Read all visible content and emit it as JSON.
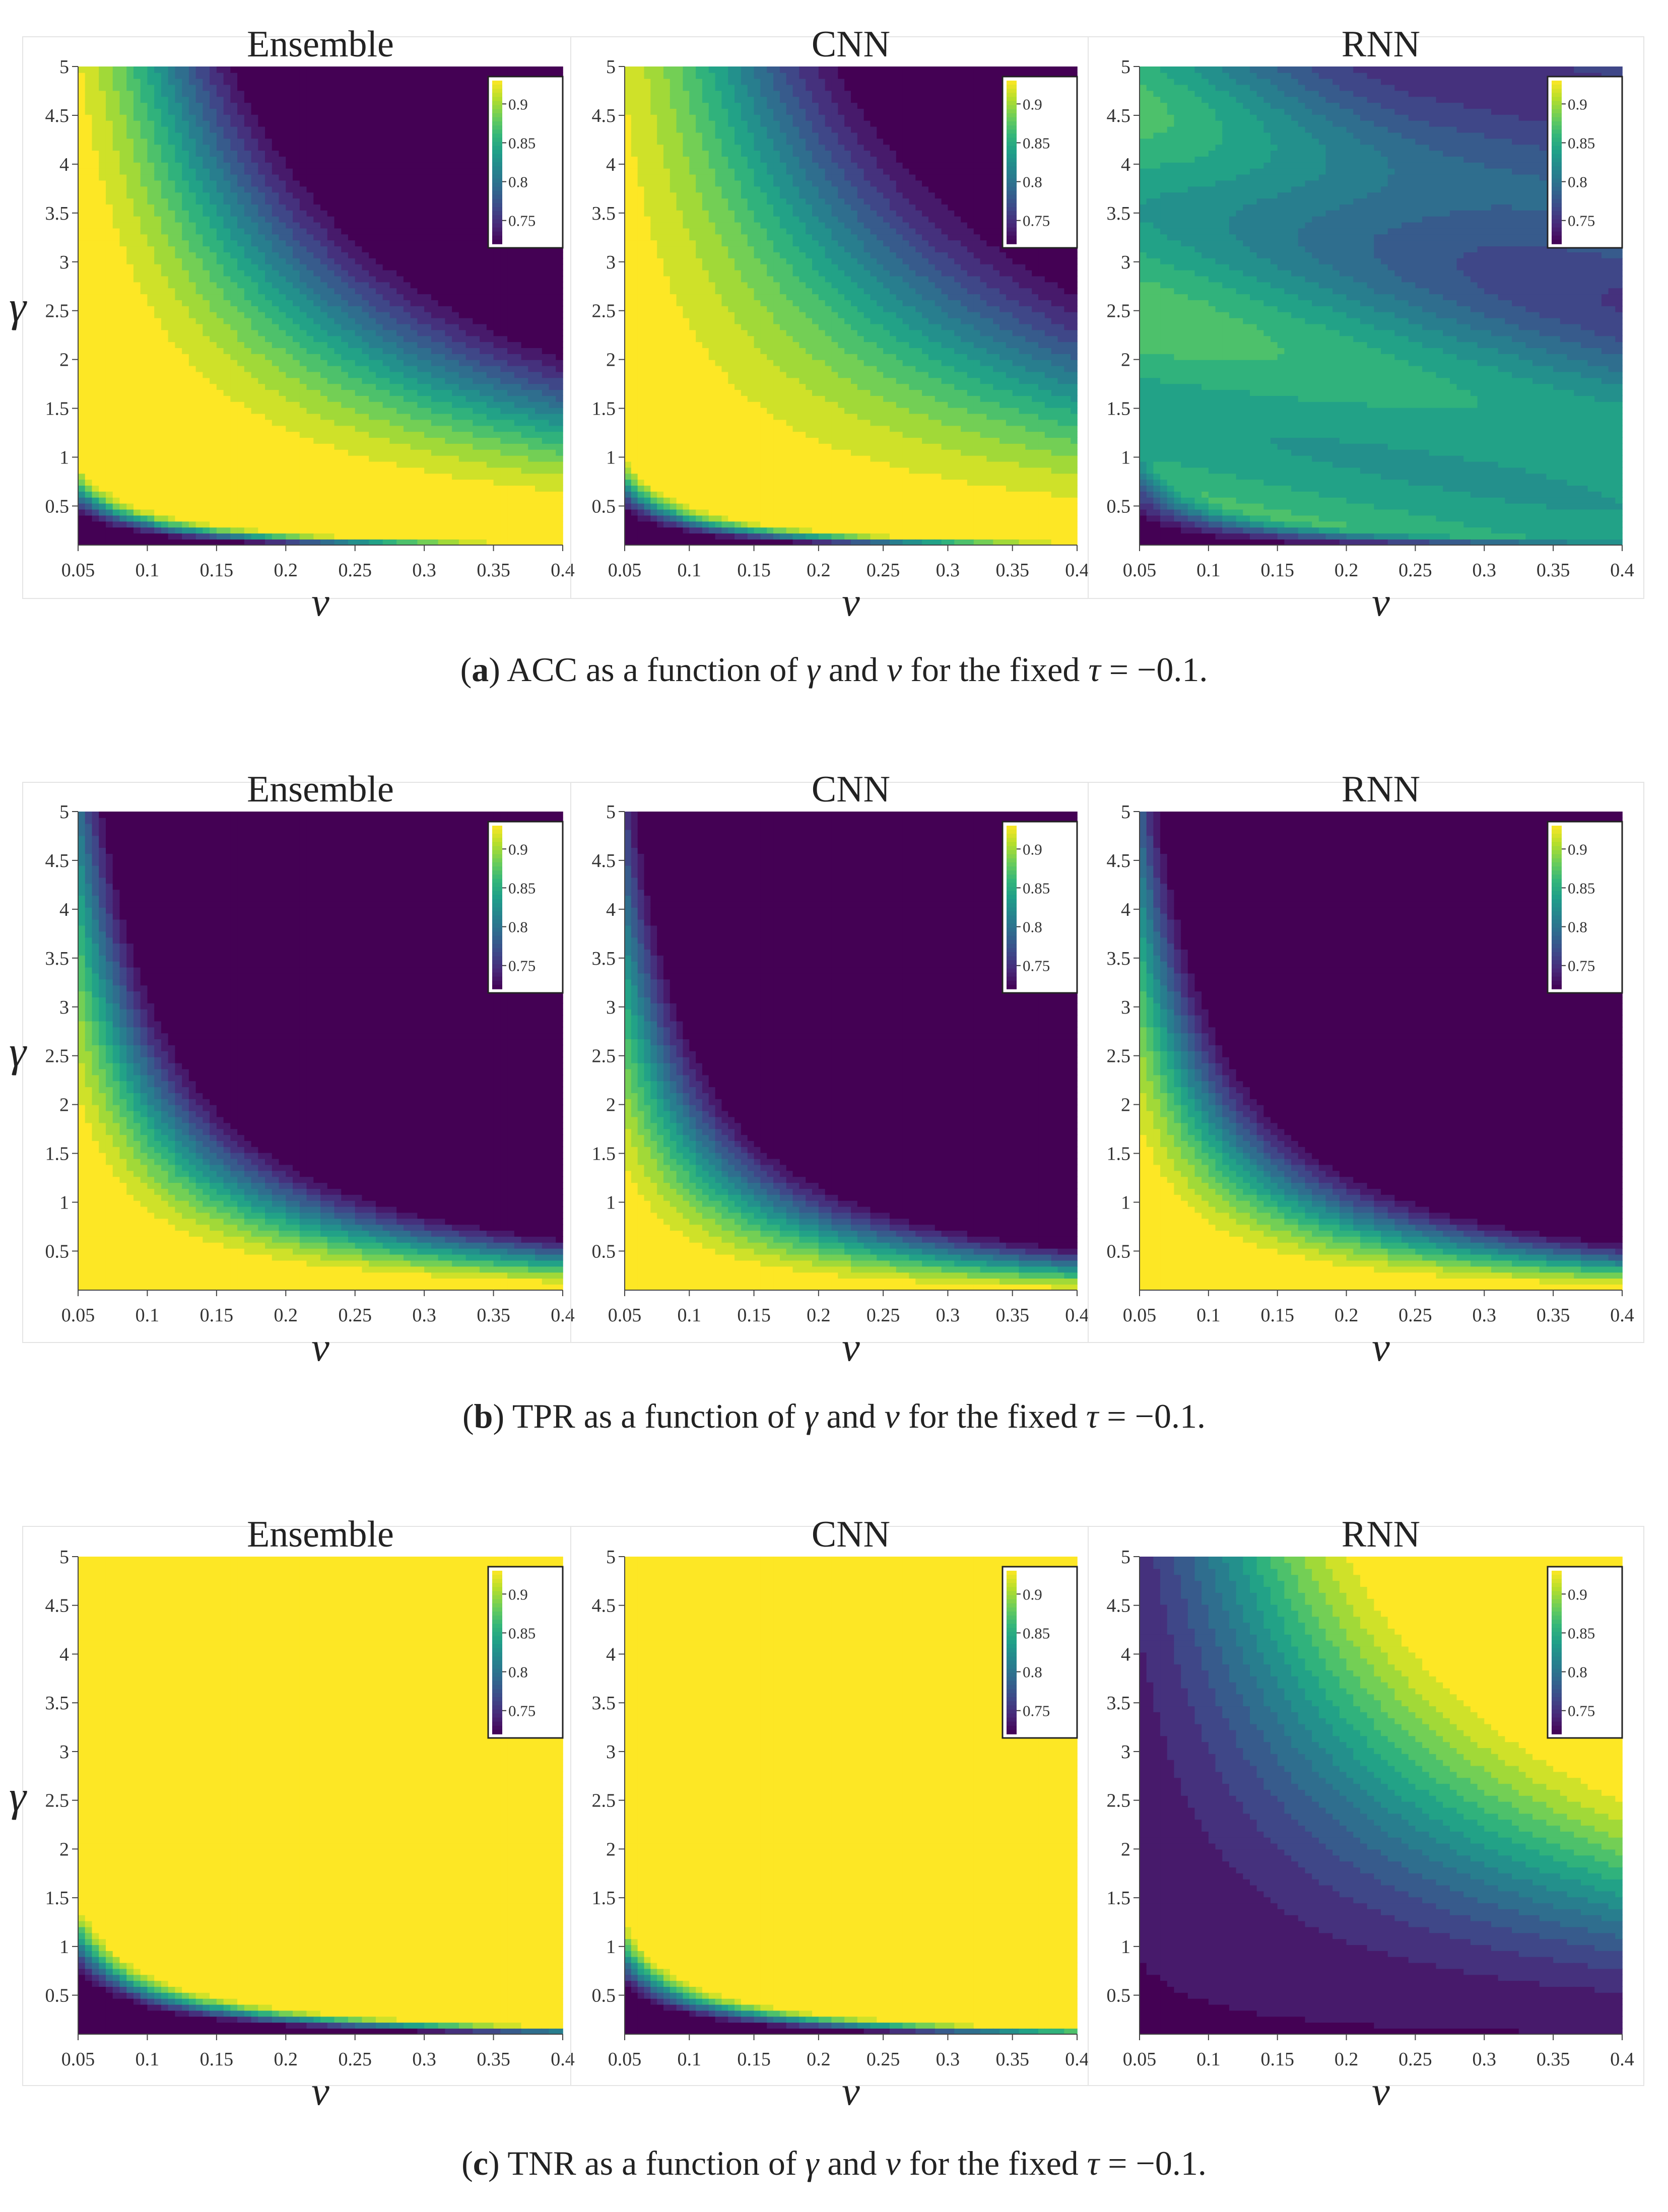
{
  "figure": {
    "rows": [
      {
        "label": "a",
        "caption": "ACC as a function of γ and ν for the fixed τ = −0.1.",
        "caption_parts": {
          "pre": "ACC as a function of ",
          "g": "γ",
          "mid": " and ",
          "n": "ν",
          "post": " for the fixed ",
          "t": "τ",
          "eq": " = −0.1."
        }
      },
      {
        "label": "b",
        "caption": "TPR as a function of γ and ν for the fixed τ = −0.1.",
        "caption_parts": {
          "pre": "TPR as a function of ",
          "g": "γ",
          "mid": " and ",
          "n": "ν",
          "post": " for the fixed ",
          "t": "τ",
          "eq": " = −0.1."
        }
      },
      {
        "label": "c",
        "caption": "TNR as a function of γ and ν for the fixed τ = −0.1.",
        "caption_parts": {
          "pre": "TNR as a function of ",
          "g": "γ",
          "mid": " and ",
          "n": "ν",
          "post": " for the fixed ",
          "t": "τ",
          "eq": " = −0.1."
        }
      }
    ],
    "colors": {
      "viridis": [
        "#440154",
        "#482878",
        "#3e4989",
        "#31688e",
        "#26828e",
        "#1f9e89",
        "#35b779",
        "#6ece58",
        "#b5de2b",
        "#fde725"
      ]
    }
  },
  "chart_data": [
    {
      "type": "heatmap",
      "panel_row": "a",
      "title": "Ensemble",
      "xlabel": "ν",
      "ylabel": "γ",
      "metric": "ACC",
      "model": "ensemble",
      "xlim": [
        0.05,
        0.4
      ],
      "ylim": [
        0.1,
        5
      ],
      "x_ticks": [
        "0.05",
        "0.1",
        "0.15",
        "0.2",
        "0.25",
        "0.3",
        "0.35",
        "0.4"
      ],
      "y_ticks": [
        "0.5",
        "1",
        "1.5",
        "2",
        "2.5",
        "3",
        "3.5",
        "4",
        "4.5",
        "5"
      ],
      "colorbar": {
        "ticks": [
          "0.75",
          "0.8",
          "0.85",
          "0.9"
        ],
        "range": [
          0.72,
          0.93
        ]
      }
    },
    {
      "type": "heatmap",
      "panel_row": "a",
      "title": "CNN",
      "xlabel": "ν",
      "ylabel": "",
      "metric": "ACC",
      "model": "cnn",
      "xlim": [
        0.05,
        0.4
      ],
      "ylim": [
        0.1,
        5
      ],
      "x_ticks": [
        "0.05",
        "0.1",
        "0.15",
        "0.2",
        "0.25",
        "0.3",
        "0.35",
        "0.4"
      ],
      "y_ticks": [
        "0.5",
        "1",
        "1.5",
        "2",
        "2.5",
        "3",
        "3.5",
        "4",
        "4.5",
        "5"
      ],
      "colorbar": {
        "ticks": [
          "0.75",
          "0.8",
          "0.85",
          "0.9"
        ],
        "range": [
          0.72,
          0.93
        ]
      }
    },
    {
      "type": "heatmap",
      "panel_row": "a",
      "title": "RNN",
      "xlabel": "ν",
      "ylabel": "",
      "metric": "ACC",
      "model": "rnn",
      "xlim": [
        0.05,
        0.4
      ],
      "ylim": [
        0.1,
        5
      ],
      "x_ticks": [
        "0.05",
        "0.1",
        "0.15",
        "0.2",
        "0.25",
        "0.3",
        "0.35",
        "0.4"
      ],
      "y_ticks": [
        "0.5",
        "1",
        "1.5",
        "2",
        "2.5",
        "3",
        "3.5",
        "4",
        "4.5",
        "5"
      ],
      "colorbar": {
        "ticks": [
          "0.75",
          "0.8",
          "0.85",
          "0.9"
        ],
        "range": [
          0.72,
          0.93
        ]
      }
    },
    {
      "type": "heatmap",
      "panel_row": "b",
      "title": "Ensemble",
      "xlabel": "ν",
      "ylabel": "γ",
      "metric": "TPR",
      "model": "ensemble",
      "xlim": [
        0.05,
        0.4
      ],
      "ylim": [
        0.1,
        5
      ],
      "x_ticks": [
        "0.05",
        "0.1",
        "0.15",
        "0.2",
        "0.25",
        "0.3",
        "0.35",
        "0.4"
      ],
      "y_ticks": [
        "0.5",
        "1",
        "1.5",
        "2",
        "2.5",
        "3",
        "3.5",
        "4",
        "4.5",
        "5"
      ],
      "colorbar": {
        "ticks": [
          "0.75",
          "0.8",
          "0.85",
          "0.9"
        ],
        "range": [
          0.72,
          0.93
        ]
      }
    },
    {
      "type": "heatmap",
      "panel_row": "b",
      "title": "CNN",
      "xlabel": "ν",
      "ylabel": "",
      "metric": "TPR",
      "model": "cnn",
      "xlim": [
        0.05,
        0.4
      ],
      "ylim": [
        0.1,
        5
      ],
      "x_ticks": [
        "0.05",
        "0.1",
        "0.15",
        "0.2",
        "0.25",
        "0.3",
        "0.35",
        "0.4"
      ],
      "y_ticks": [
        "0.5",
        "1",
        "1.5",
        "2",
        "2.5",
        "3",
        "3.5",
        "4",
        "4.5",
        "5"
      ],
      "colorbar": {
        "ticks": [
          "0.75",
          "0.8",
          "0.85",
          "0.9"
        ],
        "range": [
          0.72,
          0.93
        ]
      }
    },
    {
      "type": "heatmap",
      "panel_row": "b",
      "title": "RNN",
      "xlabel": "ν",
      "ylabel": "",
      "metric": "TPR",
      "model": "rnn",
      "xlim": [
        0.05,
        0.4
      ],
      "ylim": [
        0.1,
        5
      ],
      "x_ticks": [
        "0.05",
        "0.1",
        "0.15",
        "0.2",
        "0.25",
        "0.3",
        "0.35",
        "0.4"
      ],
      "y_ticks": [
        "0.5",
        "1",
        "1.5",
        "2",
        "2.5",
        "3",
        "3.5",
        "4",
        "4.5",
        "5"
      ],
      "colorbar": {
        "ticks": [
          "0.75",
          "0.8",
          "0.85",
          "0.9"
        ],
        "range": [
          0.72,
          0.93
        ]
      }
    },
    {
      "type": "heatmap",
      "panel_row": "c",
      "title": "Ensemble",
      "xlabel": "ν",
      "ylabel": "γ",
      "metric": "TNR",
      "model": "ensemble",
      "xlim": [
        0.05,
        0.4
      ],
      "ylim": [
        0.1,
        5
      ],
      "x_ticks": [
        "0.05",
        "0.1",
        "0.15",
        "0.2",
        "0.25",
        "0.3",
        "0.35",
        "0.4"
      ],
      "y_ticks": [
        "0.5",
        "1",
        "1.5",
        "2",
        "2.5",
        "3",
        "3.5",
        "4",
        "4.5",
        "5"
      ],
      "colorbar": {
        "ticks": [
          "0.75",
          "0.8",
          "0.85",
          "0.9"
        ],
        "range": [
          0.72,
          0.93
        ]
      }
    },
    {
      "type": "heatmap",
      "panel_row": "c",
      "title": "CNN",
      "xlabel": "ν",
      "ylabel": "",
      "metric": "TNR",
      "model": "cnn",
      "xlim": [
        0.05,
        0.4
      ],
      "ylim": [
        0.1,
        5
      ],
      "x_ticks": [
        "0.05",
        "0.1",
        "0.15",
        "0.2",
        "0.25",
        "0.3",
        "0.35",
        "0.4"
      ],
      "y_ticks": [
        "0.5",
        "1",
        "1.5",
        "2",
        "2.5",
        "3",
        "3.5",
        "4",
        "4.5",
        "5"
      ],
      "colorbar": {
        "ticks": [
          "0.75",
          "0.8",
          "0.85",
          "0.9"
        ],
        "range": [
          0.72,
          0.93
        ]
      }
    },
    {
      "type": "heatmap",
      "panel_row": "c",
      "title": "RNN",
      "xlabel": "ν",
      "ylabel": "",
      "metric": "TNR",
      "model": "rnn",
      "xlim": [
        0.05,
        0.4
      ],
      "ylim": [
        0.1,
        5
      ],
      "x_ticks": [
        "0.05",
        "0.1",
        "0.15",
        "0.2",
        "0.25",
        "0.3",
        "0.35",
        "0.4"
      ],
      "y_ticks": [
        "0.5",
        "1",
        "1.5",
        "2",
        "2.5",
        "3",
        "3.5",
        "4",
        "4.5",
        "5"
      ],
      "colorbar": {
        "ticks": [
          "0.75",
          "0.8",
          "0.85",
          "0.9"
        ],
        "range": [
          0.72,
          0.93
        ]
      }
    }
  ]
}
